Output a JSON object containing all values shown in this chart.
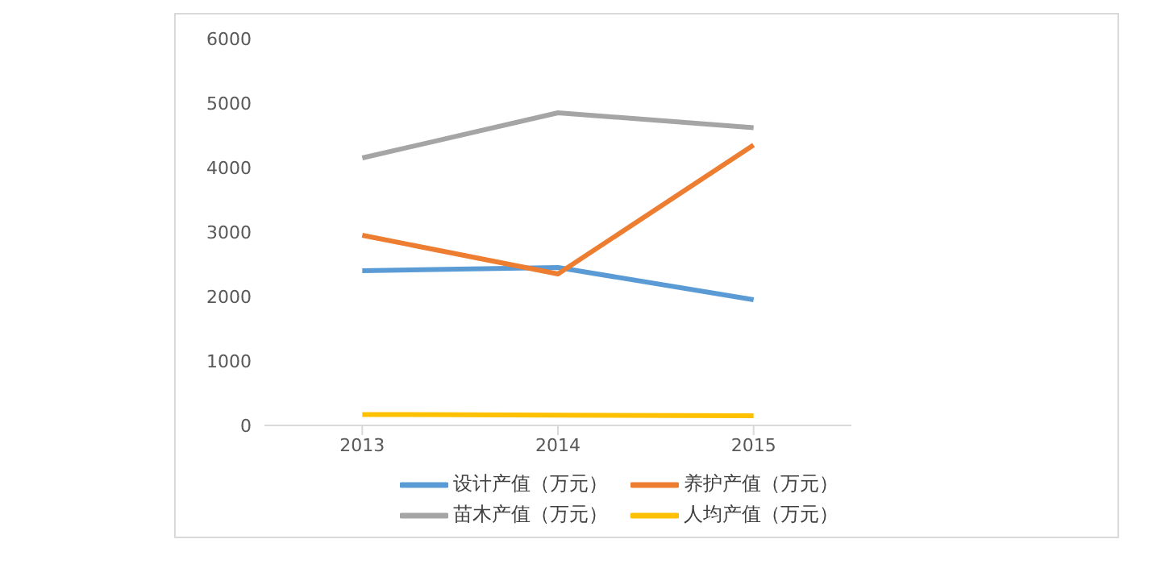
{
  "chart_data": {
    "type": "line",
    "categories": [
      "2013",
      "2014",
      "2015"
    ],
    "series": [
      {
        "name": "设计产值（万元）",
        "color": "#5b9bd5",
        "values": [
          2400,
          2450,
          1950
        ]
      },
      {
        "name": "养护产值（万元）",
        "color": "#ed7d31",
        "values": [
          2950,
          2350,
          4350
        ]
      },
      {
        "name": "苗木产值（万元）",
        "color": "#a5a5a5",
        "values": [
          4150,
          4850,
          4620
        ]
      },
      {
        "name": "人均产值（万元）",
        "color": "#ffc000",
        "values": [
          170,
          160,
          150
        ]
      }
    ],
    "ylim": [
      0,
      6000
    ],
    "yticks": [
      0,
      1000,
      2000,
      3000,
      4000,
      5000,
      6000
    ],
    "grid": false,
    "legend": "bottom",
    "marker": "none",
    "line_style": "solid"
  }
}
